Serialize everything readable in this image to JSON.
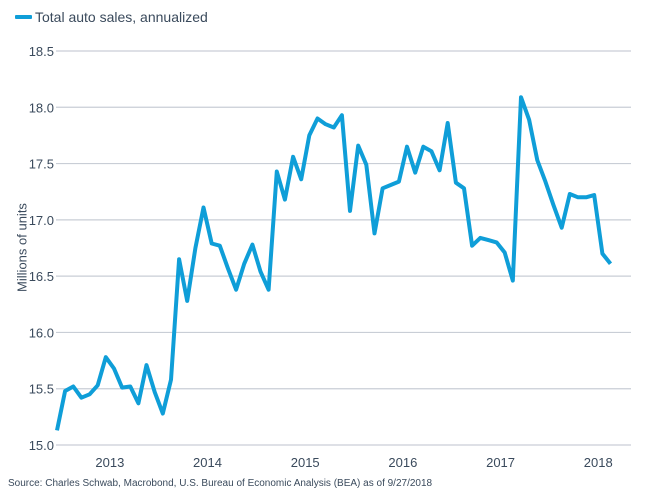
{
  "chart_data": {
    "type": "line",
    "title": "",
    "legend": [
      "Total auto sales, annualized"
    ],
    "legend_position": "top-left",
    "xlabel": "",
    "ylabel": "Millions of units",
    "ylim": [
      15.0,
      18.5
    ],
    "yticks": [
      "15.0",
      "15.5",
      "16.0",
      "16.5",
      "17.0",
      "17.5",
      "18.0",
      "18.5"
    ],
    "xticks": [
      "2013",
      "2014",
      "2015",
      "2016",
      "2017",
      "2018"
    ],
    "grid": "horizontal",
    "x_start": "2012-07",
    "x_frequency": "monthly",
    "series": [
      {
        "name": "Total auto sales, annualized",
        "color": "#0f9ed8",
        "values": [
          15.13,
          15.48,
          15.52,
          15.42,
          15.45,
          15.53,
          15.78,
          15.68,
          15.51,
          15.52,
          15.37,
          15.71,
          15.47,
          15.28,
          15.58,
          16.65,
          16.28,
          16.75,
          17.11,
          16.79,
          16.77,
          16.57,
          16.38,
          16.61,
          16.78,
          16.54,
          16.38,
          17.43,
          17.18,
          17.56,
          17.36,
          17.75,
          17.9,
          17.85,
          17.82,
          17.93,
          17.08,
          17.66,
          17.49,
          16.88,
          17.28,
          17.31,
          17.34,
          17.65,
          17.42,
          17.65,
          17.61,
          17.44,
          17.86,
          17.33,
          17.28,
          16.77,
          16.84,
          16.82,
          16.8,
          16.71,
          16.46,
          18.09,
          17.89,
          17.53,
          17.34,
          17.13,
          16.93,
          17.23,
          17.2,
          17.2,
          17.22,
          16.7,
          16.61
        ]
      }
    ]
  },
  "source": "Source: Charles Schwab, Macrobond, U.S. Bureau of Economic Analysis (BEA) as of 9/27/2018"
}
